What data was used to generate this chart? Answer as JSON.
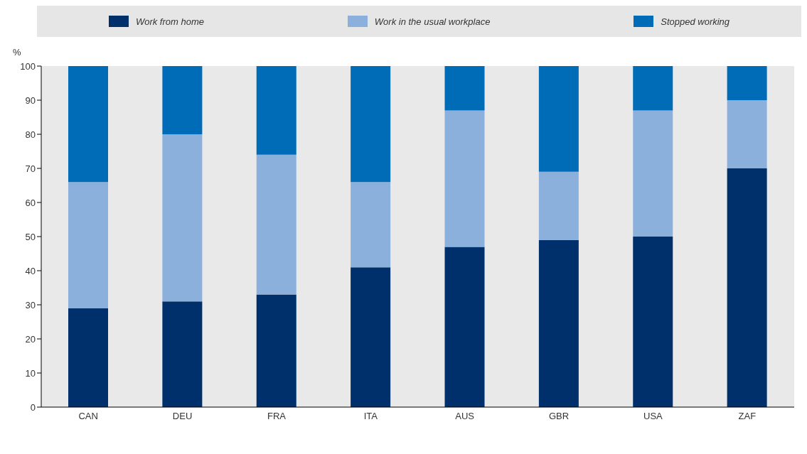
{
  "chart_data": {
    "type": "bar",
    "stacked": true,
    "ylabel": "%",
    "categories": [
      "CAN",
      "DEU",
      "FRA",
      "ITA",
      "AUS",
      "GBR",
      "USA",
      "ZAF"
    ],
    "series": [
      {
        "name": "Work from home",
        "color": "#00306b",
        "values": [
          29,
          31,
          33,
          41,
          47,
          49,
          50,
          70
        ]
      },
      {
        "name": "Work in the usual workplace",
        "color": "#8cb0dc",
        "values": [
          37,
          49,
          41,
          25,
          40,
          20,
          37,
          20
        ]
      },
      {
        "name": "Stopped working",
        "color": "#006bb6",
        "values": [
          34,
          20,
          26,
          34,
          13,
          31,
          13,
          10
        ]
      }
    ],
    "ylim": [
      0,
      100
    ],
    "yticks": [
      0,
      10,
      20,
      30,
      40,
      50,
      60,
      70,
      80,
      90,
      100
    ],
    "legend": "top"
  }
}
